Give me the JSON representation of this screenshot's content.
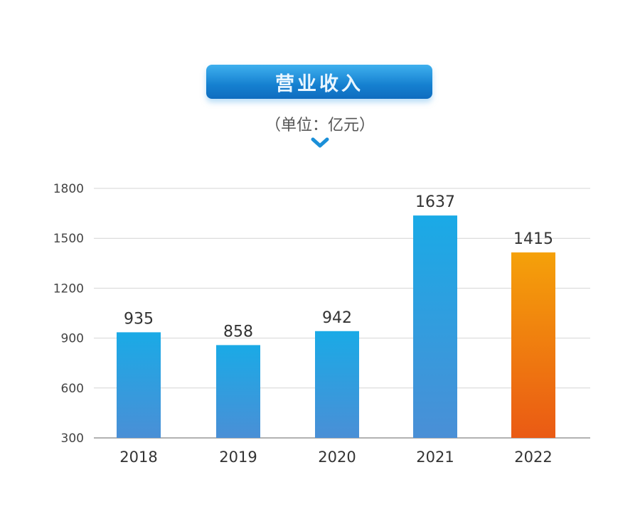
{
  "chart_data": {
    "type": "bar",
    "title": "营业收入",
    "subtitle": "（单位：亿元）",
    "categories": [
      "2018",
      "2019",
      "2020",
      "2021",
      "2022"
    ],
    "values": [
      935,
      858,
      942,
      1637,
      1415
    ],
    "ylim": [
      300,
      1800
    ],
    "yticks": [
      300,
      600,
      900,
      1200,
      1500,
      1800
    ],
    "grid": true,
    "colors": {
      "default_top": "#1aaae6",
      "default_bottom": "#4a8fd6",
      "highlight_top": "#f5a10a",
      "highlight_bottom": "#ea5a14",
      "title_box": "#1a88d6"
    },
    "highlight_category": "2022"
  }
}
